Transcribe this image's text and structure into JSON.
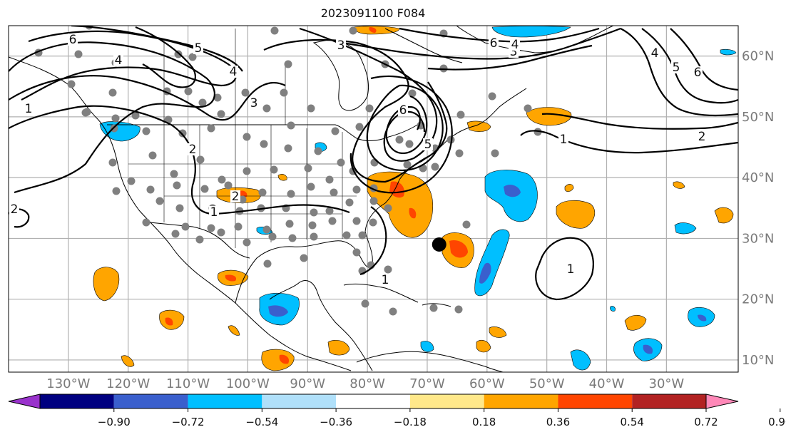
{
  "title": "2023091100 F084",
  "map": {
    "projection": "cylindrical",
    "lon_range": [
      -140,
      -18
    ],
    "lat_range": [
      8,
      65
    ],
    "lat_gridlines": [
      {
        "value": 60,
        "label": "60°N"
      },
      {
        "value": 50,
        "label": "50°N"
      },
      {
        "value": 40,
        "label": "40°N"
      },
      {
        "value": 30,
        "label": "30°N"
      },
      {
        "value": 20,
        "label": "20°N"
      },
      {
        "value": 10,
        "label": "10°N"
      }
    ],
    "lon_gridlines": [
      {
        "value": -130,
        "label": "130°W"
      },
      {
        "value": -120,
        "label": "120°W"
      },
      {
        "value": -110,
        "label": "110°W"
      },
      {
        "value": -100,
        "label": "100°W"
      },
      {
        "value": -90,
        "label": "90°W"
      },
      {
        "value": -80,
        "label": "80°W"
      },
      {
        "value": -70,
        "label": "70°W"
      },
      {
        "value": -60,
        "label": "60°W"
      },
      {
        "value": -50,
        "label": "50°W"
      },
      {
        "value": -40,
        "label": "40°W"
      },
      {
        "value": -30,
        "label": "30°W"
      }
    ],
    "storm_center": {
      "lon": -68,
      "lat": 29
    },
    "contour_labels": [
      "6",
      "4",
      "5",
      "4",
      "3",
      "2",
      "1",
      "1",
      "3",
      "2",
      "6",
      "5",
      "3",
      "6",
      "4",
      "4",
      "5",
      "6",
      "1",
      "2",
      "1",
      "2",
      "1"
    ]
  },
  "colorbar": {
    "ticks": [
      "−0.90",
      "−0.72",
      "−0.54",
      "−0.36",
      "−0.18",
      "0.18",
      "0.36",
      "0.54",
      "0.72",
      "0.90"
    ],
    "colors": [
      "#9932cc",
      "#000080",
      "#3a5fcd",
      "#00bfff",
      "#b0e0fa",
      "#ffffff",
      "#ffe88a",
      "#ffa500",
      "#ff4500",
      "#b22222",
      "#ff88b8"
    ]
  },
  "colors": {
    "grid": "#b0b0b0",
    "station": "#808080",
    "contour": "#000000",
    "pos1": "#ffa500",
    "pos2": "#ff4500",
    "neg1": "#00bfff",
    "neg2": "#3a5fcd"
  }
}
